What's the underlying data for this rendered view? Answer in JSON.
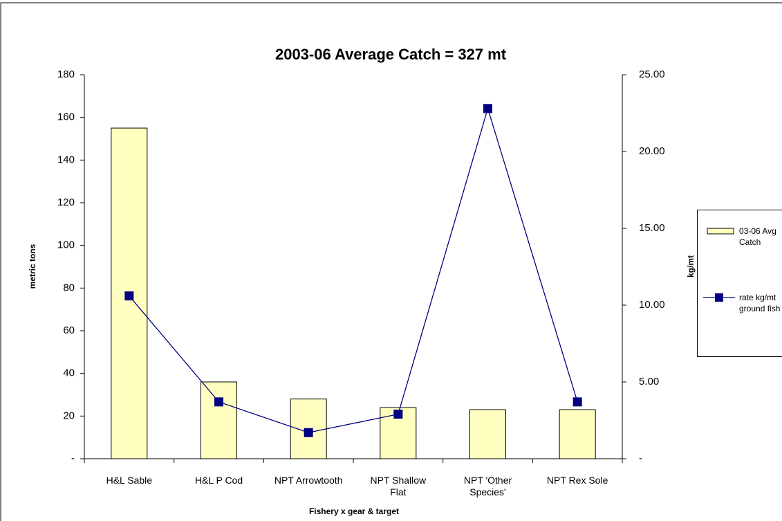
{
  "chart_data": {
    "type": "bar-line",
    "title": "2003-06 Average Catch = 327 mt",
    "x_label": "Fishery x gear & target",
    "y_label": "metric tons",
    "y2_label": "kg/mt",
    "categories": [
      "H&L Sable",
      "H&L P Cod",
      "NPT Arrowtooth",
      "NPT Shallow Flat",
      "NPT 'Other Species'",
      "NPT Rex Sole"
    ],
    "series": [
      {
        "name": "03-06 Avg Catch",
        "type": "bar",
        "color": "#ffffc0",
        "values": [
          155,
          36,
          28,
          24,
          23,
          23
        ]
      },
      {
        "name": "rate kg/mt ground fish",
        "type": "line",
        "axis": "y2",
        "color": "#000080",
        "values": [
          10.6,
          3.7,
          1.7,
          2.9,
          22.8,
          3.7
        ]
      }
    ],
    "ylim": [
      0,
      180
    ],
    "yticks": [
      {
        "value": 0,
        "label": "-"
      },
      20,
      40,
      60,
      80,
      100,
      120,
      140,
      160,
      180
    ],
    "y2lim": [
      0,
      25
    ],
    "y2ticks": [
      {
        "value": 0,
        "label": "-"
      },
      {
        "value": 5,
        "label": "5.00"
      },
      {
        "value": 10,
        "label": "10.00"
      },
      {
        "value": 15,
        "label": "15.00"
      },
      {
        "value": 20,
        "label": "20.00"
      },
      {
        "value": 25,
        "label": "25.00"
      }
    ],
    "grid": false,
    "legend": "right"
  }
}
